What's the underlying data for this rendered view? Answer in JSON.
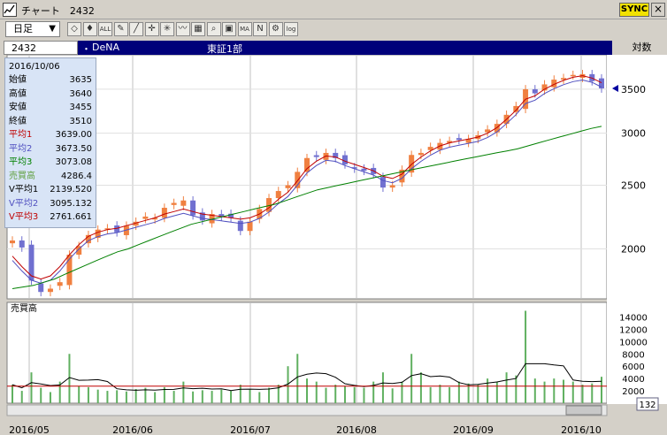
{
  "window": {
    "title": "チャート　2432",
    "sync_label": "SYNC",
    "close_label": "×"
  },
  "toolbar": {
    "period_value": "日足",
    "period_arrow": "▼",
    "tools": [
      {
        "name": "candle-tool",
        "glyph": "◇"
      },
      {
        "name": "bar-tool",
        "glyph": "♦"
      },
      {
        "name": "all-tool",
        "glyph": "ALL"
      },
      {
        "name": "draw-tool",
        "glyph": "✎"
      },
      {
        "name": "line-tool",
        "glyph": "╱"
      },
      {
        "name": "cross-tool",
        "glyph": "✛"
      },
      {
        "name": "star-tool",
        "glyph": "✳"
      },
      {
        "name": "wave-tool",
        "glyph": "〰"
      },
      {
        "name": "grid-tool",
        "glyph": "▦"
      },
      {
        "name": "search-tool",
        "glyph": "⌕"
      },
      {
        "name": "box-tool",
        "glyph": "▣"
      },
      {
        "name": "ma-tool",
        "glyph": "MA"
      },
      {
        "name": "trend-tool",
        "glyph": "N"
      },
      {
        "name": "settings-tool",
        "glyph": "⚙"
      },
      {
        "name": "log-tool",
        "glyph": "log"
      }
    ]
  },
  "header": {
    "code": "2432",
    "dot": "・",
    "name": "DeNA",
    "market": "東証1部",
    "scale_label": "対数"
  },
  "info": {
    "date": "2016/10/06",
    "rows": [
      {
        "label": "始値",
        "value": "3635",
        "color": "#000000"
      },
      {
        "label": "高値",
        "value": "3640",
        "color": "#000000"
      },
      {
        "label": "安値",
        "value": "3455",
        "color": "#000000"
      },
      {
        "label": "終値",
        "value": "3510",
        "color": "#000000"
      },
      {
        "label": "平均1",
        "value": "3639.00",
        "color": "#c00000"
      },
      {
        "label": "平均2",
        "value": "3673.50",
        "color": "#5050c0"
      },
      {
        "label": "平均3",
        "value": "3073.08",
        "color": "#008000"
      },
      {
        "label": "売買高",
        "value": "4286.4",
        "color": "#60a040"
      },
      {
        "label": "V平均1",
        "value": "2139.520",
        "color": "#000000"
      },
      {
        "label": "V平均2",
        "value": "3095.132",
        "color": "#5050c0"
      },
      {
        "label": "V平均3",
        "value": "2761.661",
        "color": "#c00000"
      }
    ]
  },
  "price_axis": [
    "3500",
    "3000",
    "2500",
    "2000"
  ],
  "volume_panel": {
    "label": "売買高",
    "axis": [
      "14000",
      "12000",
      "10000",
      "8000",
      "6000",
      "4000",
      "2000"
    ],
    "count_badge": "132"
  },
  "x_axis": [
    "2016/05",
    "2016/06",
    "2016/07",
    "2016/08",
    "2016/09",
    "2016/10"
  ],
  "colors": {
    "up": "#f08040",
    "down": "#7070d0",
    "ma_short": "#c00000",
    "ma_mid": "#5050c0",
    "ma_long": "#008000",
    "volume": "#60b060"
  },
  "chart_data": {
    "type": "candlestick",
    "price_scale": "log",
    "ylim": [
      1700,
      3900
    ],
    "close_approx": [
      2060,
      2010,
      1790,
      1720,
      1740,
      1780,
      1960,
      2020,
      2100,
      2140,
      2150,
      2120,
      2170,
      2200,
      2240,
      2230,
      2310,
      2350,
      2370,
      2250,
      2210,
      2260,
      2240,
      2230,
      2130,
      2200,
      2300,
      2390,
      2450,
      2500,
      2620,
      2750,
      2760,
      2800,
      2750,
      2690,
      2650,
      2630,
      2600,
      2480,
      2500,
      2640,
      2780,
      2800,
      2860,
      2900,
      2920,
      2930,
      2940,
      2980,
      3040,
      3100,
      3200,
      3300,
      3500,
      3450,
      3560,
      3620,
      3640,
      3680,
      3690,
      3600,
      3510
    ],
    "ma_short_approx": [
      1950,
      1880,
      1820,
      1800,
      1820,
      1880,
      1960,
      2030,
      2090,
      2120,
      2140,
      2150,
      2170,
      2190,
      2210,
      2230,
      2260,
      2280,
      2300,
      2280,
      2260,
      2250,
      2240,
      2230,
      2220,
      2230,
      2260,
      2310,
      2380,
      2440,
      2540,
      2650,
      2720,
      2770,
      2760,
      2720,
      2690,
      2660,
      2630,
      2580,
      2560,
      2600,
      2690,
      2760,
      2820,
      2870,
      2900,
      2920,
      2940,
      2960,
      3000,
      3060,
      3150,
      3250,
      3380,
      3420,
      3500,
      3560,
      3610,
      3650,
      3670,
      3640,
      3580
    ],
    "ma_long_approx": [
      1740,
      1750,
      1760,
      1780,
      1800,
      1830,
      1860,
      1890,
      1920,
      1950,
      1980,
      2000,
      2030,
      2060,
      2090,
      2120,
      2150,
      2180,
      2200,
      2220,
      2240,
      2260,
      2280,
      2300,
      2320,
      2340,
      2370,
      2400,
      2430,
      2460,
      2480,
      2500,
      2520,
      2540,
      2560,
      2580,
      2600,
      2620,
      2640,
      2660,
      2680,
      2700,
      2720,
      2740,
      2760,
      2780,
      2800,
      2820,
      2840,
      2870,
      2900,
      2930,
      2960,
      2990,
      3020,
      3050,
      3073
    ],
    "volume_approx": [
      3000,
      2000,
      5000,
      2500,
      1800,
      3500,
      8000,
      2800,
      2600,
      2200,
      2000,
      2100,
      1900,
      2300,
      2500,
      1800,
      2600,
      2000,
      3500,
      1900,
      2100,
      2000,
      2200,
      2000,
      3000,
      2200,
      1800,
      2500,
      3000,
      6000,
      8000,
      4000,
      3500,
      2500,
      3000,
      2800,
      2600,
      2500,
      3500,
      5000,
      2400,
      3500,
      8000,
      5000,
      2600,
      3000,
      2600,
      3500,
      3200,
      3000,
      4000,
      3500,
      5000,
      4500,
      15000,
      4000,
      3500,
      4000,
      3800,
      3500,
      3000,
      3200,
      4286
    ]
  }
}
